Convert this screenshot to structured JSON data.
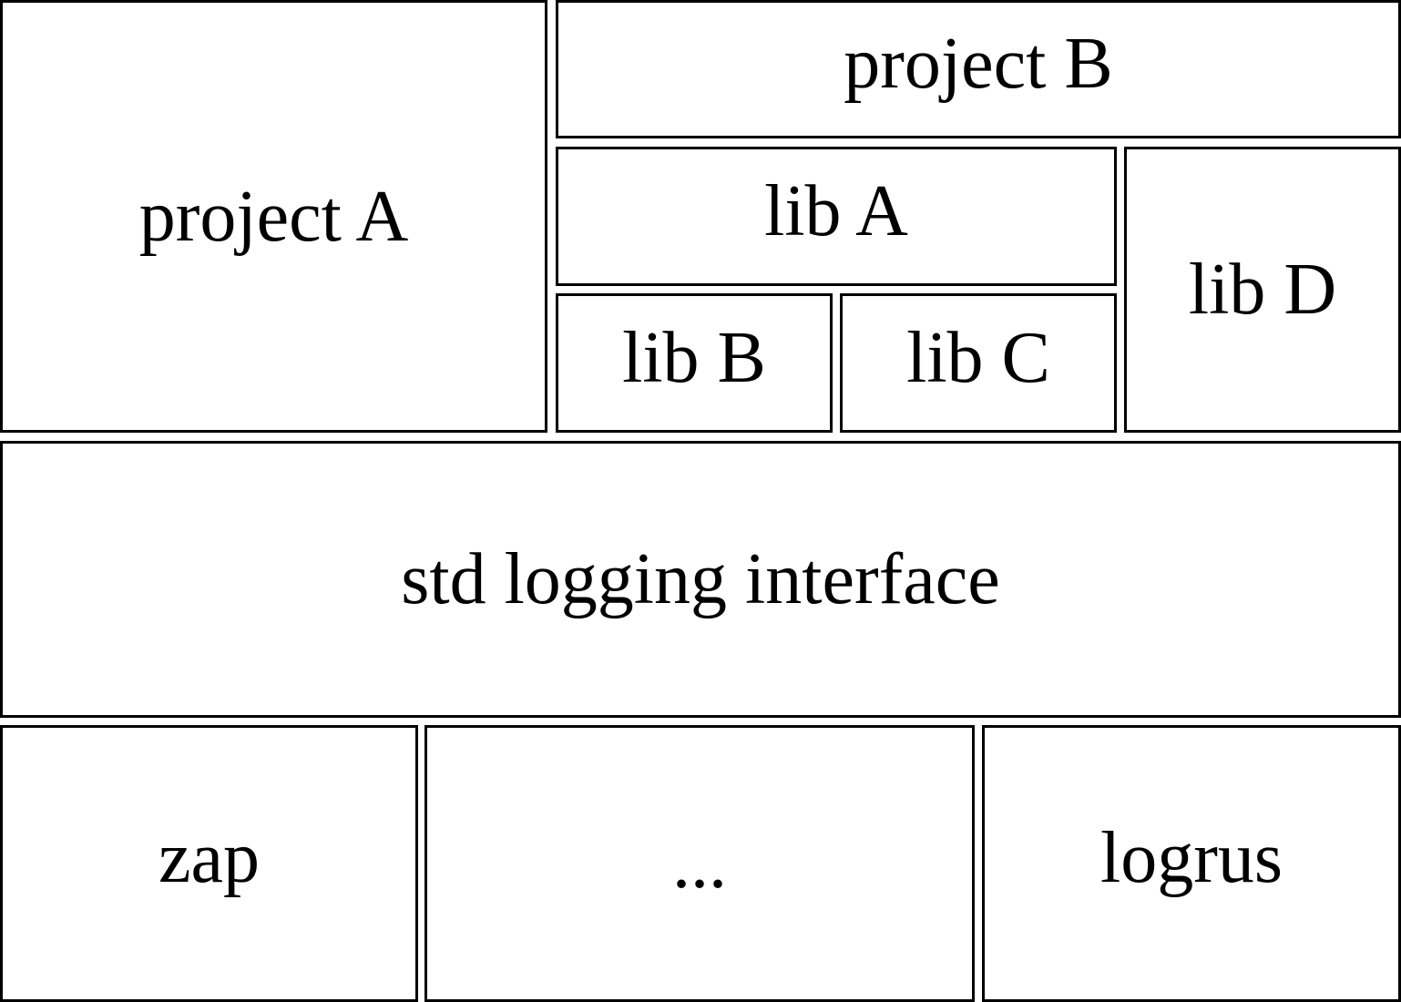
{
  "diagram": {
    "boxes": {
      "project_a": "project A",
      "project_b": "project B",
      "lib_a": "lib A",
      "lib_b": "lib B",
      "lib_c": "lib C",
      "lib_d": "lib D",
      "std_logging": "std logging interface",
      "zap": "zap",
      "ellipsis": "...",
      "logrus": "logrus"
    },
    "colors": {
      "border": "#000000",
      "background": "#ffffff",
      "text": "#000000"
    }
  }
}
